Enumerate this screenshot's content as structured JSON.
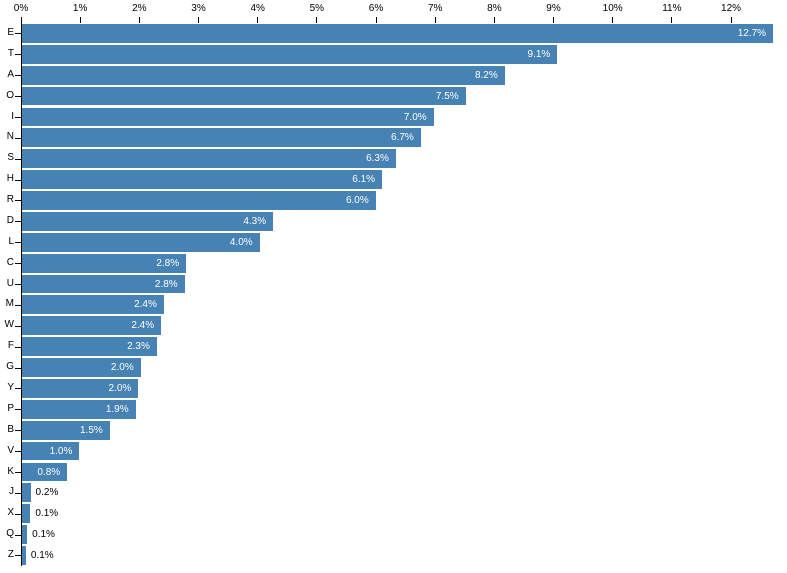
{
  "chart_data": {
    "type": "bar",
    "orientation": "horizontal",
    "title": "",
    "xlabel": "",
    "ylabel": "",
    "x_axis": {
      "position": "top",
      "tick_labels": [
        "0%",
        "1%",
        "2%",
        "3%",
        "4%",
        "5%",
        "6%",
        "7%",
        "8%",
        "9%",
        "10%",
        "11%",
        "12%"
      ],
      "tick_values": [
        0,
        1,
        2,
        3,
        4,
        5,
        6,
        7,
        8,
        9,
        10,
        11,
        12
      ],
      "xlim": [
        0,
        12.95
      ],
      "grid": false
    },
    "categories": [
      "E",
      "T",
      "A",
      "O",
      "I",
      "N",
      "S",
      "H",
      "R",
      "D",
      "L",
      "C",
      "U",
      "M",
      "W",
      "F",
      "G",
      "Y",
      "P",
      "B",
      "V",
      "K",
      "J",
      "X",
      "Q",
      "Z"
    ],
    "values": [
      12.7,
      9.1,
      8.2,
      7.5,
      7.0,
      6.7,
      6.3,
      6.1,
      6.0,
      4.3,
      4.0,
      2.8,
      2.8,
      2.4,
      2.4,
      2.3,
      2.0,
      2.0,
      1.9,
      1.5,
      1.0,
      0.8,
      0.2,
      0.1,
      0.1,
      0.1
    ],
    "value_labels": [
      "12.7%",
      "9.1%",
      "8.2%",
      "7.5%",
      "7.0%",
      "6.7%",
      "6.3%",
      "6.1%",
      "6.0%",
      "4.3%",
      "4.0%",
      "2.8%",
      "2.8%",
      "2.4%",
      "2.4%",
      "2.3%",
      "2.0%",
      "2.0%",
      "1.9%",
      "1.5%",
      "1.0%",
      "0.8%",
      "0.2%",
      "0.1%",
      "0.1%",
      "0.1%"
    ],
    "bar_lengths_pct_estimate": [
      12.702,
      9.056,
      8.167,
      7.507,
      6.966,
      6.749,
      6.327,
      6.094,
      5.987,
      4.253,
      4.025,
      2.782,
      2.758,
      2.406,
      2.36,
      2.288,
      2.015,
      1.974,
      1.929,
      1.492,
      0.978,
      0.772,
      0.153,
      0.15,
      0.095,
      0.074
    ],
    "legend": "none",
    "colors": {
      "bar": "#4682B4",
      "label_inside": "#ffffff",
      "label_outside": "#000000",
      "axis": "#000000",
      "background": "#ffffff"
    }
  }
}
